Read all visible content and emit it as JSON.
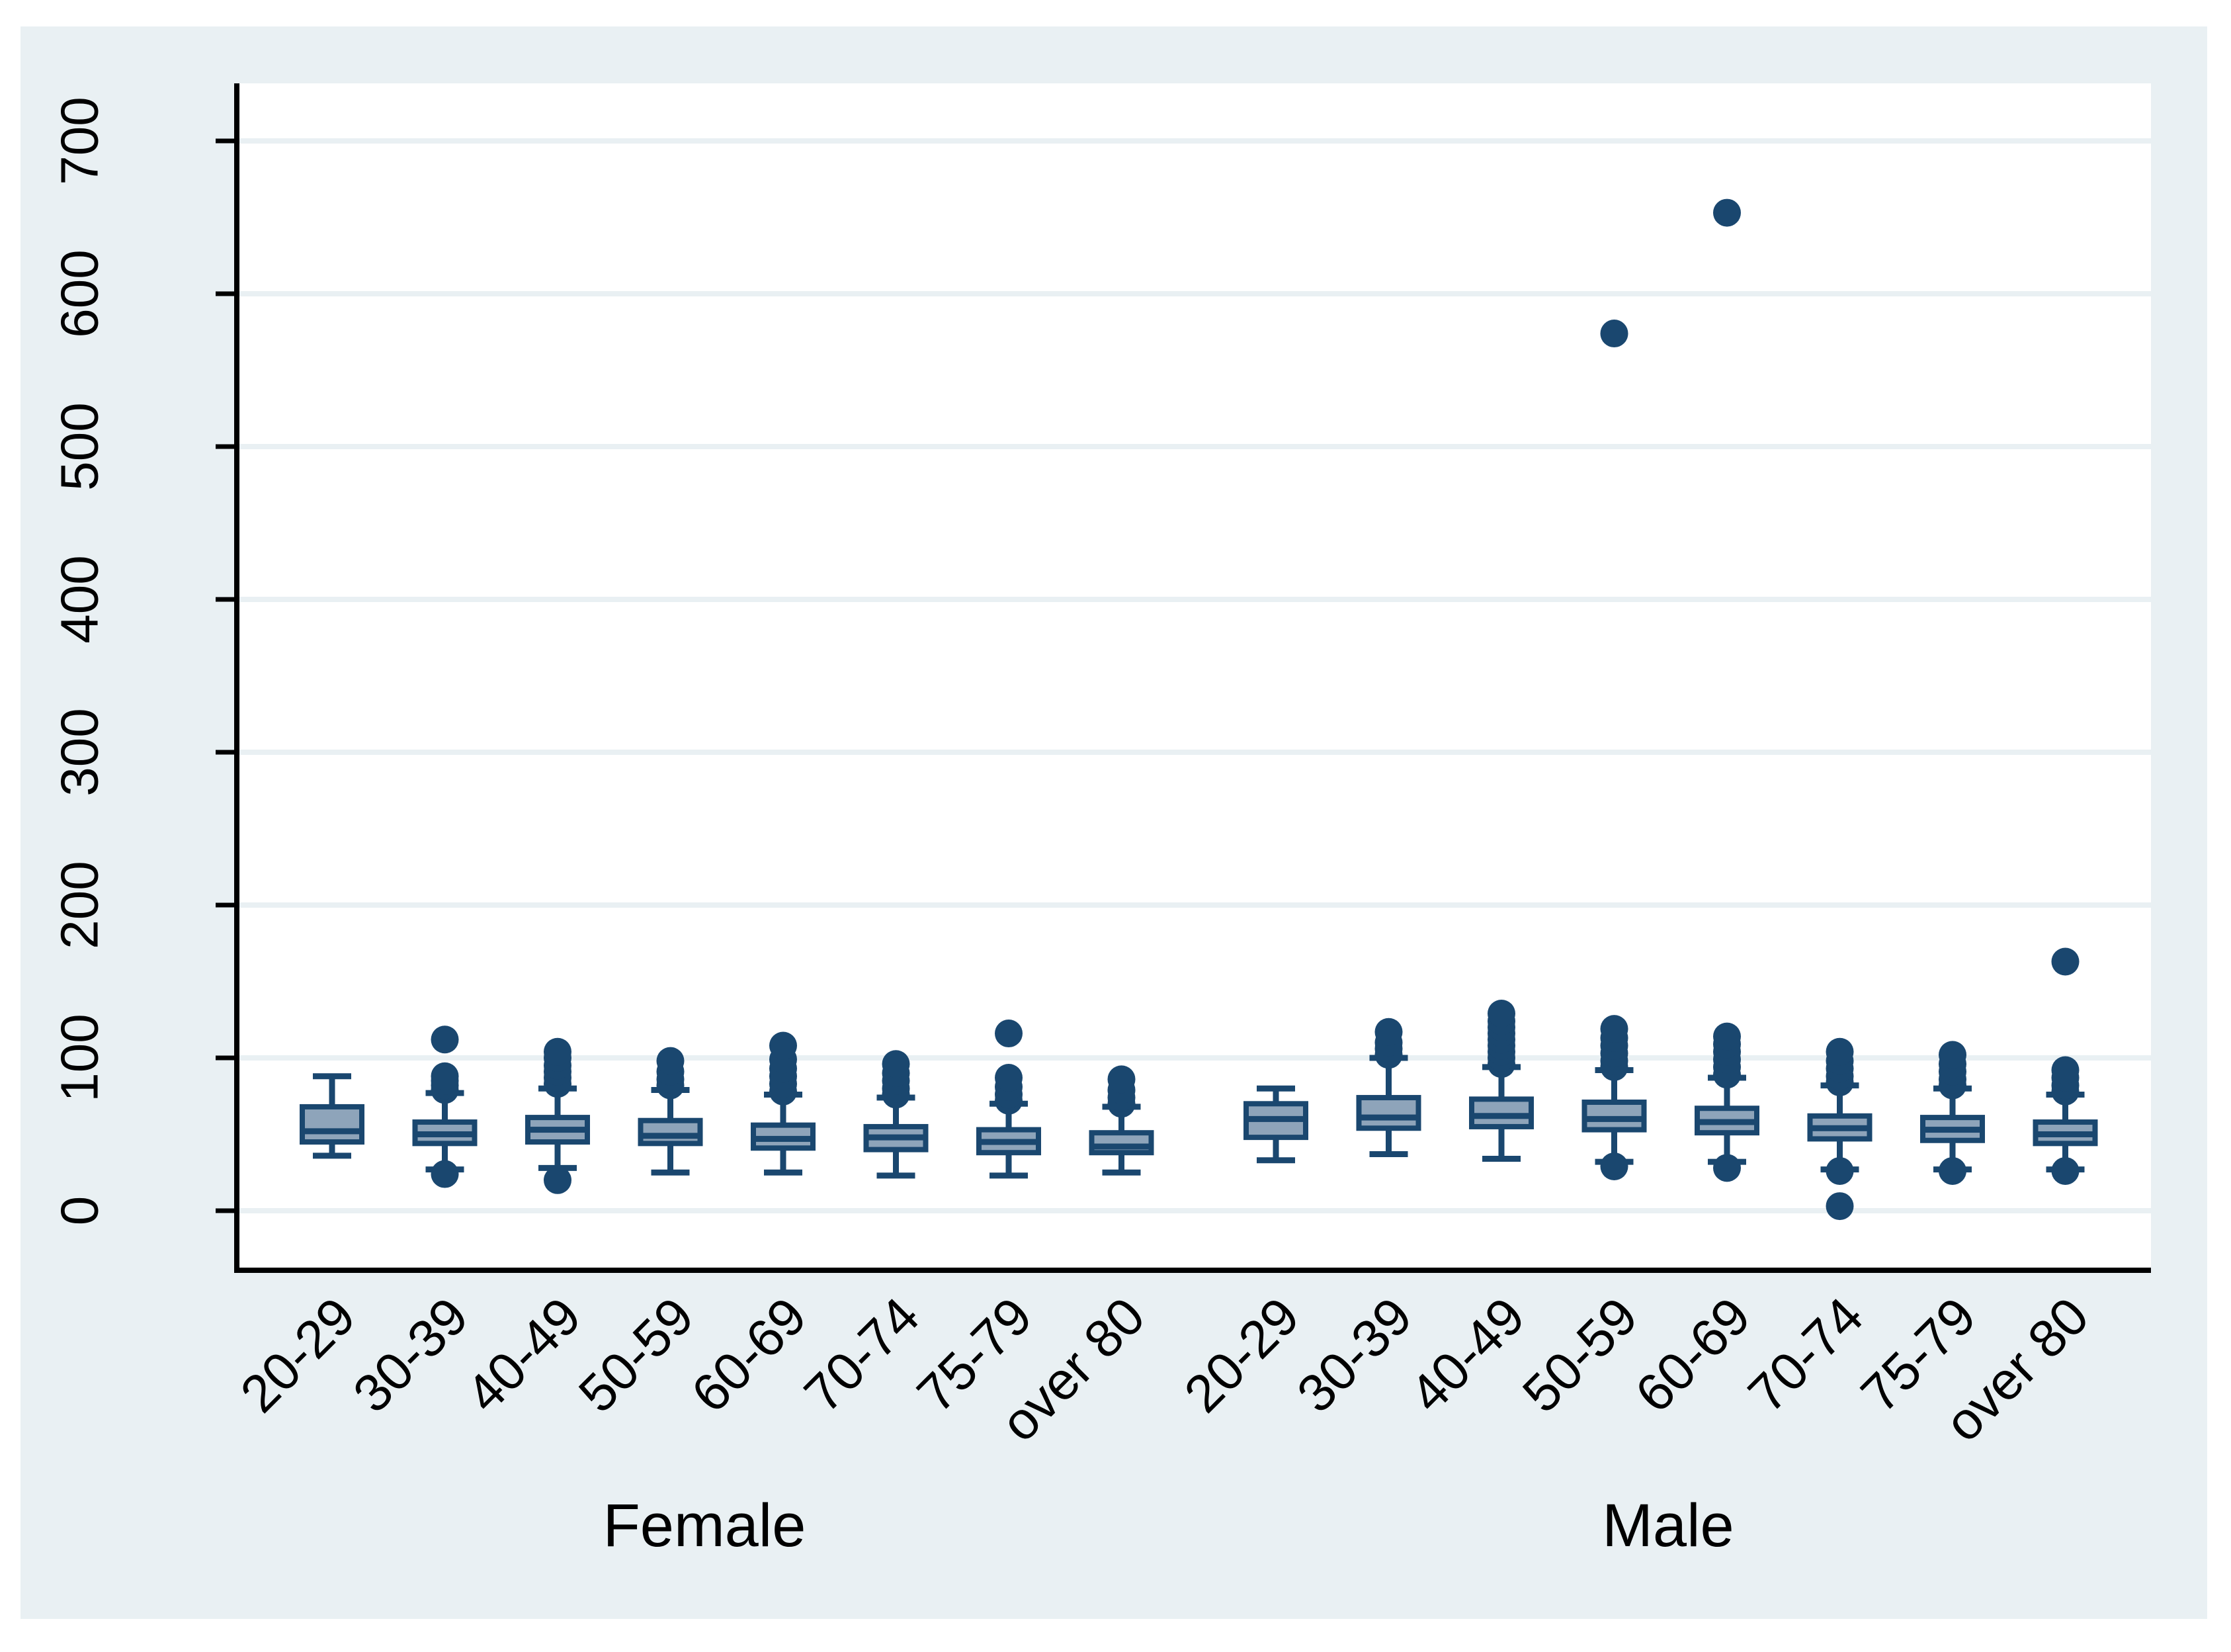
{
  "figure": {
    "colors": {
      "background": "#e9f0f3",
      "plot_background": "#ffffff",
      "gridline": "#e9f0f3",
      "axis": "#000000",
      "text": "#000000",
      "box_border": "#1a476f",
      "box_fill": "#8ea4ba",
      "outlier": "#1a476f"
    }
  },
  "chart_data": {
    "type": "box",
    "title": "",
    "xlabel": "",
    "ylabel": "",
    "ylim": [
      0,
      700
    ],
    "grid": "horizontal",
    "legend": "none",
    "y_ticks": [
      0,
      100,
      200,
      300,
      400,
      500,
      600,
      700
    ],
    "y_tick_labels": [
      "0",
      "100",
      "200",
      "300",
      "400",
      "500",
      "600",
      "700"
    ],
    "y_tick_label_rotation_deg": 90,
    "x_tick_label_rotation_deg": 45,
    "categories": [
      "20-29",
      "30-39",
      "40-49",
      "50-59",
      "60-69",
      "70-74",
      "75-79",
      "over 80"
    ],
    "group_labels": [
      "Female",
      "Male"
    ],
    "groups": [
      {
        "label": "Female",
        "boxes": [
          {
            "category": "20-29",
            "whisker_low": 36,
            "q1": 45,
            "median": 52,
            "q3": 68,
            "whisker_high": 88,
            "outliers_high": [],
            "outliers_low": []
          },
          {
            "category": "30-39",
            "whisker_low": 27,
            "q1": 44,
            "median": 50,
            "q3": 58,
            "whisker_high": 77,
            "outliers_high": [
              79,
              82,
              85,
              88,
              112
            ],
            "outliers_low": [
              24
            ]
          },
          {
            "category": "40-49",
            "whisker_low": 28,
            "q1": 45,
            "median": 53,
            "q3": 61,
            "whisker_high": 80,
            "outliers_high": [
              83,
              87,
              91,
              95,
              100,
              104
            ],
            "outliers_low": [
              20
            ]
          },
          {
            "category": "50-59",
            "whisker_low": 25,
            "q1": 44,
            "median": 49,
            "q3": 59,
            "whisker_high": 79,
            "outliers_high": [
              82,
              86,
              91,
              98
            ],
            "outliers_low": []
          },
          {
            "category": "60-69",
            "whisker_low": 25,
            "q1": 41,
            "median": 47,
            "q3": 56,
            "whisker_high": 76,
            "outliers_high": [
              78,
              83,
              88,
              93,
              99,
              108
            ],
            "outliers_low": []
          },
          {
            "category": "70-74",
            "whisker_low": 23,
            "q1": 40,
            "median": 48,
            "q3": 55,
            "whisker_high": 74,
            "outliers_high": [
              76,
              80,
              85,
              90,
              96
            ],
            "outliers_low": []
          },
          {
            "category": "75-79",
            "whisker_low": 23,
            "q1": 38,
            "median": 45,
            "q3": 53,
            "whisker_high": 70,
            "outliers_high": [
              72,
              76,
              81,
              87,
              116
            ],
            "outliers_low": []
          },
          {
            "category": "over 80",
            "whisker_low": 25,
            "q1": 38,
            "median": 42,
            "q3": 51,
            "whisker_high": 68,
            "outliers_high": [
              70,
              74,
              79,
              86
            ],
            "outliers_low": []
          }
        ]
      },
      {
        "label": "Male",
        "boxes": [
          {
            "category": "20-29",
            "whisker_low": 33,
            "q1": 48,
            "median": 60,
            "q3": 70,
            "whisker_high": 80,
            "outliers_high": [],
            "outliers_low": []
          },
          {
            "category": "30-39",
            "whisker_low": 37,
            "q1": 54,
            "median": 61,
            "q3": 74,
            "whisker_high": 100,
            "outliers_high": [
              102,
              106,
              110,
              117
            ],
            "outliers_low": []
          },
          {
            "category": "40-49",
            "whisker_low": 34,
            "q1": 55,
            "median": 62,
            "q3": 73,
            "whisker_high": 94,
            "outliers_high": [
              96,
              100,
              104,
              108,
              112,
              116,
              120,
              124,
              129
            ],
            "outliers_low": []
          },
          {
            "category": "50-59",
            "whisker_low": 32,
            "q1": 53,
            "median": 60,
            "q3": 71,
            "whisker_high": 92,
            "outliers_high": [
              94,
              98,
              103,
              108,
              113,
              119,
              574
            ],
            "outliers_low": [
              29
            ]
          },
          {
            "category": "60-69",
            "whisker_low": 32,
            "q1": 51,
            "median": 58,
            "q3": 67,
            "whisker_high": 87,
            "outliers_high": [
              89,
              94,
              99,
              104,
              109,
              114,
              653
            ],
            "outliers_low": [
              28
            ]
          },
          {
            "category": "70-74",
            "whisker_low": 27,
            "q1": 47,
            "median": 54,
            "q3": 62,
            "whisker_high": 82,
            "outliers_high": [
              84,
              88,
              93,
              98,
              104
            ],
            "outliers_low": [
              26,
              3
            ]
          },
          {
            "category": "75-79",
            "whisker_low": 27,
            "q1": 46,
            "median": 53,
            "q3": 61,
            "whisker_high": 80,
            "outliers_high": [
              82,
              86,
              91,
              96,
              102
            ],
            "outliers_low": [
              26
            ]
          },
          {
            "category": "over 80",
            "whisker_low": 27,
            "q1": 44,
            "median": 50,
            "q3": 58,
            "whisker_high": 76,
            "outliers_high": [
              78,
              82,
              87,
              92,
              163
            ],
            "outliers_low": [
              26
            ]
          }
        ]
      }
    ]
  }
}
